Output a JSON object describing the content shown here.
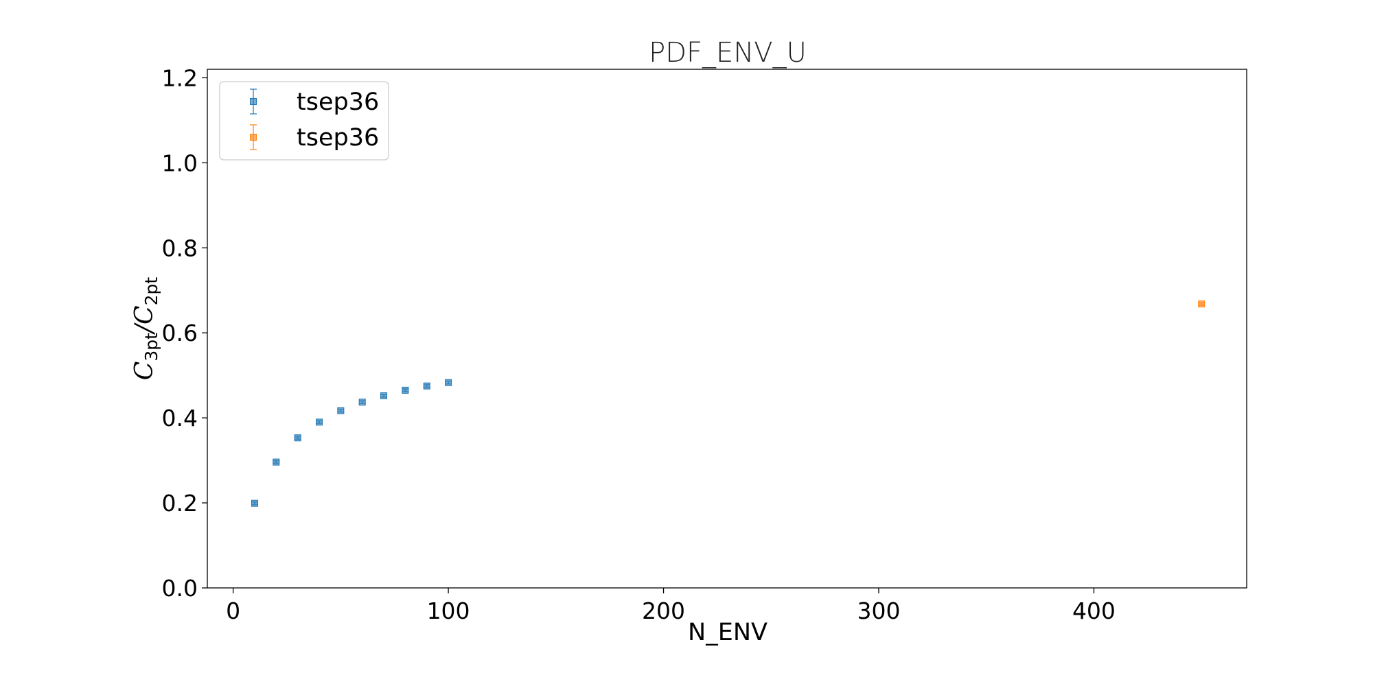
{
  "chart_data": {
    "type": "scatter",
    "title": "PDF_ENV_U",
    "xlabel": "N_ENV",
    "ylabel": {
      "symbol_1": "C",
      "sub_1": "3pt",
      "slash": "/",
      "symbol_2": "C",
      "sub_2": "2pt"
    },
    "xlim": [
      -12,
      471
    ],
    "ylim": [
      0.0,
      1.22
    ],
    "x_ticks": [
      0,
      100,
      200,
      300,
      400
    ],
    "x_tick_labels": [
      "0",
      "100",
      "200",
      "300",
      "400"
    ],
    "y_ticks": [
      0.0,
      0.2,
      0.4,
      0.6,
      0.8,
      1.0,
      1.2
    ],
    "y_tick_labels": [
      "0.0",
      "0.2",
      "0.4",
      "0.6",
      "0.8",
      "1.0",
      "1.2"
    ],
    "grid": false,
    "legend": {
      "position": "top-left"
    },
    "series": [
      {
        "name": "tsep36",
        "color": "#1f77b4",
        "marker": "square",
        "x": [
          10,
          20,
          30,
          40,
          50,
          60,
          70,
          80,
          90,
          100
        ],
        "y": [
          0.199,
          0.296,
          0.353,
          0.39,
          0.417,
          0.437,
          0.452,
          0.465,
          0.475,
          0.483
        ],
        "yerr": [
          0.003,
          0.003,
          0.003,
          0.003,
          0.003,
          0.003,
          0.003,
          0.003,
          0.003,
          0.003
        ]
      },
      {
        "name": "tsep36",
        "color": "#ff7f0e",
        "marker": "square",
        "x": [
          450
        ],
        "y": [
          0.668
        ],
        "yerr": [
          0.003
        ]
      }
    ]
  }
}
